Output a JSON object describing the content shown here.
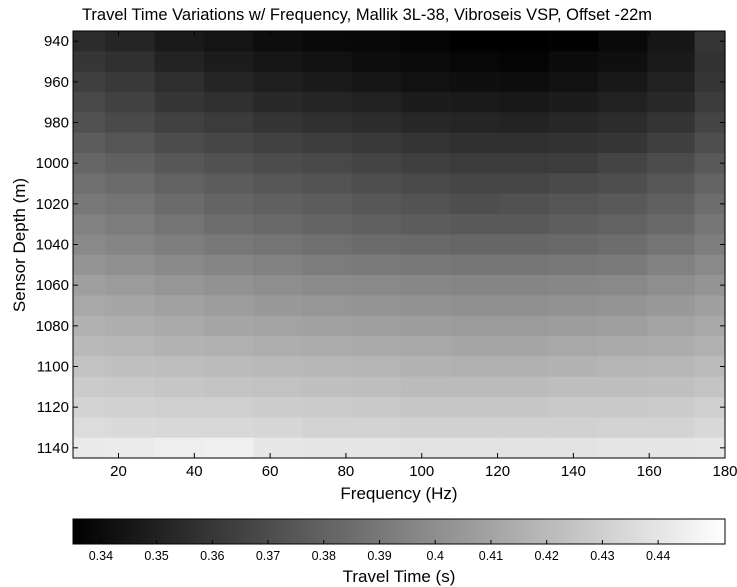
{
  "chart_data": [
    {
      "type": "heatmap",
      "title": "Travel Time Variations w/ Frequency, Mallik 3L-38, Vibroseis VSP, Offset -22m",
      "xlabel": "Frequency (Hz)",
      "ylabel": "Sensor Depth (m)",
      "xlim": [
        8,
        180
      ],
      "ylim": [
        1145,
        935
      ],
      "x_ticks": [
        20,
        40,
        60,
        80,
        100,
        120,
        140,
        160,
        180
      ],
      "y_ticks": [
        940,
        960,
        980,
        1000,
        1020,
        1040,
        1060,
        1080,
        1100,
        1120,
        1140
      ],
      "rows": [
        {
          "depth": 940,
          "values": [
            0.355,
            0.352,
            0.347,
            0.344,
            0.341,
            0.339,
            0.338,
            0.337,
            0.335,
            0.333,
            0.336,
            0.339,
            0.345,
            0.36
          ]
        },
        {
          "depth": 950,
          "values": [
            0.36,
            0.357,
            0.351,
            0.348,
            0.345,
            0.343,
            0.341,
            0.34,
            0.338,
            0.337,
            0.34,
            0.342,
            0.347,
            0.358
          ]
        },
        {
          "depth": 960,
          "values": [
            0.364,
            0.361,
            0.356,
            0.352,
            0.349,
            0.347,
            0.345,
            0.343,
            0.342,
            0.341,
            0.343,
            0.346,
            0.35,
            0.36
          ]
        },
        {
          "depth": 970,
          "values": [
            0.368,
            0.365,
            0.36,
            0.357,
            0.354,
            0.352,
            0.35,
            0.348,
            0.347,
            0.346,
            0.348,
            0.35,
            0.354,
            0.362
          ]
        },
        {
          "depth": 980,
          "values": [
            0.372,
            0.369,
            0.365,
            0.362,
            0.359,
            0.357,
            0.355,
            0.353,
            0.352,
            0.351,
            0.353,
            0.355,
            0.359,
            0.366
          ]
        },
        {
          "depth": 990,
          "values": [
            0.377,
            0.374,
            0.37,
            0.367,
            0.365,
            0.363,
            0.361,
            0.359,
            0.357,
            0.357,
            0.358,
            0.36,
            0.364,
            0.371
          ]
        },
        {
          "depth": 1000,
          "values": [
            0.382,
            0.379,
            0.375,
            0.372,
            0.37,
            0.368,
            0.366,
            0.364,
            0.362,
            0.362,
            0.363,
            0.366,
            0.37,
            0.376
          ]
        },
        {
          "depth": 1010,
          "values": [
            0.386,
            0.384,
            0.38,
            0.377,
            0.375,
            0.373,
            0.371,
            0.369,
            0.367,
            0.367,
            0.369,
            0.371,
            0.375,
            0.381
          ]
        },
        {
          "depth": 1020,
          "values": [
            0.39,
            0.388,
            0.384,
            0.381,
            0.379,
            0.377,
            0.375,
            0.373,
            0.371,
            0.372,
            0.374,
            0.376,
            0.379,
            0.385
          ]
        },
        {
          "depth": 1030,
          "values": [
            0.394,
            0.392,
            0.388,
            0.385,
            0.383,
            0.381,
            0.379,
            0.377,
            0.376,
            0.376,
            0.378,
            0.38,
            0.383,
            0.389
          ]
        },
        {
          "depth": 1040,
          "values": [
            0.398,
            0.396,
            0.393,
            0.39,
            0.388,
            0.386,
            0.384,
            0.383,
            0.382,
            0.382,
            0.383,
            0.385,
            0.388,
            0.393
          ]
        },
        {
          "depth": 1050,
          "values": [
            0.403,
            0.401,
            0.398,
            0.396,
            0.394,
            0.392,
            0.391,
            0.39,
            0.389,
            0.389,
            0.39,
            0.391,
            0.394,
            0.398
          ]
        },
        {
          "depth": 1060,
          "values": [
            0.408,
            0.406,
            0.404,
            0.402,
            0.4,
            0.399,
            0.398,
            0.397,
            0.396,
            0.396,
            0.397,
            0.398,
            0.4,
            0.403
          ]
        },
        {
          "depth": 1070,
          "values": [
            0.412,
            0.411,
            0.409,
            0.407,
            0.405,
            0.404,
            0.403,
            0.402,
            0.401,
            0.401,
            0.402,
            0.403,
            0.405,
            0.408
          ]
        },
        {
          "depth": 1080,
          "values": [
            0.416,
            0.415,
            0.413,
            0.411,
            0.41,
            0.409,
            0.408,
            0.407,
            0.406,
            0.406,
            0.407,
            0.408,
            0.41,
            0.412
          ]
        },
        {
          "depth": 1090,
          "values": [
            0.42,
            0.419,
            0.417,
            0.416,
            0.415,
            0.414,
            0.413,
            0.412,
            0.411,
            0.411,
            0.412,
            0.413,
            0.414,
            0.416
          ]
        },
        {
          "depth": 1100,
          "values": [
            0.424,
            0.423,
            0.422,
            0.421,
            0.42,
            0.419,
            0.418,
            0.417,
            0.416,
            0.416,
            0.417,
            0.418,
            0.419,
            0.421
          ]
        },
        {
          "depth": 1110,
          "values": [
            0.428,
            0.427,
            0.426,
            0.425,
            0.424,
            0.423,
            0.422,
            0.421,
            0.421,
            0.421,
            0.422,
            0.422,
            0.423,
            0.425
          ]
        },
        {
          "depth": 1120,
          "values": [
            0.432,
            0.431,
            0.43,
            0.43,
            0.429,
            0.428,
            0.427,
            0.426,
            0.426,
            0.426,
            0.427,
            0.427,
            0.428,
            0.43
          ]
        },
        {
          "depth": 1130,
          "values": [
            0.436,
            0.435,
            0.434,
            0.434,
            0.433,
            0.432,
            0.432,
            0.431,
            0.431,
            0.431,
            0.431,
            0.432,
            0.432,
            0.434
          ]
        },
        {
          "depth": 1140,
          "values": [
            0.442,
            0.443,
            0.444,
            0.445,
            0.441,
            0.44,
            0.44,
            0.439,
            0.439,
            0.439,
            0.439,
            0.44,
            0.44,
            0.441
          ]
        }
      ],
      "frequencies": [
        10,
        23,
        36,
        49,
        62,
        75,
        88,
        101,
        114,
        127,
        140,
        153,
        166,
        178
      ],
      "colorbar": {
        "label": "Travel Time (s)",
        "range": [
          0.335,
          0.452
        ],
        "ticks": [
          0.34,
          0.35,
          0.36,
          0.37,
          0.38,
          0.39,
          0.4,
          0.41,
          0.42,
          0.43,
          0.44
        ],
        "tick_labels": [
          "0.34",
          "0.35",
          "0.36",
          "0.37",
          "0.38",
          "0.39",
          "0.4",
          "0.41",
          "0.42",
          "0.43",
          "0.44"
        ],
        "colormap": "gray"
      }
    }
  ]
}
